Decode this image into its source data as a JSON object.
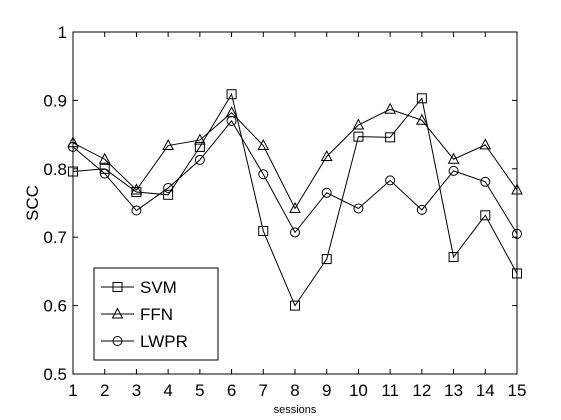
{
  "chart_data": {
    "type": "line",
    "title": "",
    "xlabel": "sessions",
    "ylabel": "SCC",
    "x": [
      1,
      2,
      3,
      4,
      5,
      6,
      7,
      8,
      9,
      10,
      11,
      12,
      13,
      14,
      15
    ],
    "xlim": [
      1,
      15
    ],
    "ylim": [
      0.5,
      1
    ],
    "xticks": [
      "1",
      "2",
      "3",
      "4",
      "5",
      "6",
      "7",
      "8",
      "9",
      "10",
      "11",
      "12",
      "13",
      "14",
      "15"
    ],
    "yticks": [
      "0.5",
      "0.6",
      "0.7",
      "0.8",
      "0.9",
      "1"
    ],
    "grid": false,
    "legend_position": "bottom-left",
    "series": [
      {
        "name": "SVM",
        "marker": "square",
        "color": "#000000",
        "values": [
          0.796,
          0.8,
          0.766,
          0.762,
          0.832,
          0.909,
          0.709,
          0.6,
          0.668,
          0.847,
          0.846,
          0.903,
          0.671,
          0.732,
          0.647
        ]
      },
      {
        "name": "FFN",
        "marker": "triangle",
        "color": "#000000",
        "values": [
          0.838,
          0.814,
          0.769,
          0.834,
          0.842,
          0.882,
          0.834,
          0.742,
          0.818,
          0.864,
          0.887,
          0.871,
          0.814,
          0.835,
          0.769
        ]
      },
      {
        "name": "LWPR",
        "marker": "circle",
        "color": "#000000",
        "values": [
          0.832,
          0.793,
          0.739,
          0.772,
          0.813,
          0.87,
          0.792,
          0.707,
          0.765,
          0.742,
          0.783,
          0.74,
          0.797,
          0.781,
          0.705
        ]
      }
    ]
  }
}
